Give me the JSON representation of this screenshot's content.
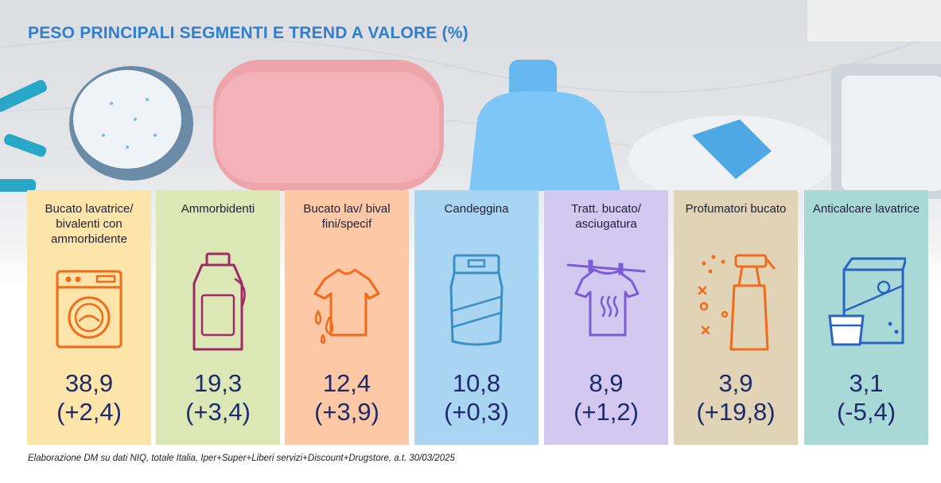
{
  "title": "PESO PRINCIPALI SEGMENTI E TREND A VALORE (%)",
  "footnote": "Elaborazione DM su dati NIQ, totale Italia, Iper+Super+Liberi servizi+Discount+Drugstore, a.t. 30/03/2025",
  "chart_data": {
    "type": "table",
    "title": "PESO PRINCIPALI SEGMENTI E TREND A VALORE (%)",
    "columns": [
      "Peso",
      "Trend"
    ],
    "rows": [
      {
        "category": "Bucato lavatrice/ bivalenti con ammorbidente",
        "value": 38.9,
        "trend": 2.4,
        "value_label": "38,9",
        "trend_label": "(+2,4)",
        "color": "#fde4a9",
        "icon": "washing-machine-icon"
      },
      {
        "category": "Ammorbidenti",
        "value": 19.3,
        "trend": 3.4,
        "value_label": "19,3",
        "trend_label": "(+3,4)",
        "color": "#dbe8b5",
        "icon": "softener-bottle-icon"
      },
      {
        "category": "Bucato lav/ bival fini/specif",
        "value": 12.4,
        "trend": 3.9,
        "value_label": "12,4",
        "trend_label": "(+3,9)",
        "color": "#fdc8a6",
        "icon": "shirt-drops-icon"
      },
      {
        "category": "Candeggina",
        "value": 10.8,
        "trend": 0.3,
        "value_label": "10,8",
        "trend_label": "(+0,3)",
        "color": "#a9d5f3",
        "icon": "detergent-bag-icon"
      },
      {
        "category": "Tratt. bucato/ asciugatura",
        "value": 8.9,
        "trend": 1.2,
        "value_label": "8,9",
        "trend_label": "(+1,2)",
        "color": "#d3c8ef",
        "icon": "shirt-on-line-icon"
      },
      {
        "category": "Profumatori bucato",
        "value": 3.9,
        "trend": 19.8,
        "value_label": "3,9",
        "trend_label": "(+19,8)",
        "color": "#e1d3b6",
        "icon": "spray-bottle-icon"
      },
      {
        "category": "Anticalcare lavatrice",
        "value": 3.1,
        "trend": -5.4,
        "value_label": "3,1",
        "trend_label": "(-5,4)",
        "color": "#a8d9d7",
        "icon": "descaler-box-icon"
      }
    ]
  },
  "icon_colors": {
    "orange": "#f26a1b",
    "green": "#9e2a67",
    "blue": "#3b8fc4",
    "purple": "#7a5cd6",
    "navy": "#2a63c2"
  }
}
